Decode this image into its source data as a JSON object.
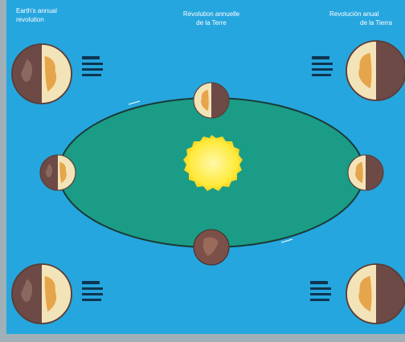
{
  "titles": {
    "left": [
      "Earth's annual",
      "revolution"
    ],
    "center": [
      "Révolution annuelle",
      "de la Terre"
    ],
    "right": [
      "Revolución anual",
      "de la Tierra"
    ]
  }
}
